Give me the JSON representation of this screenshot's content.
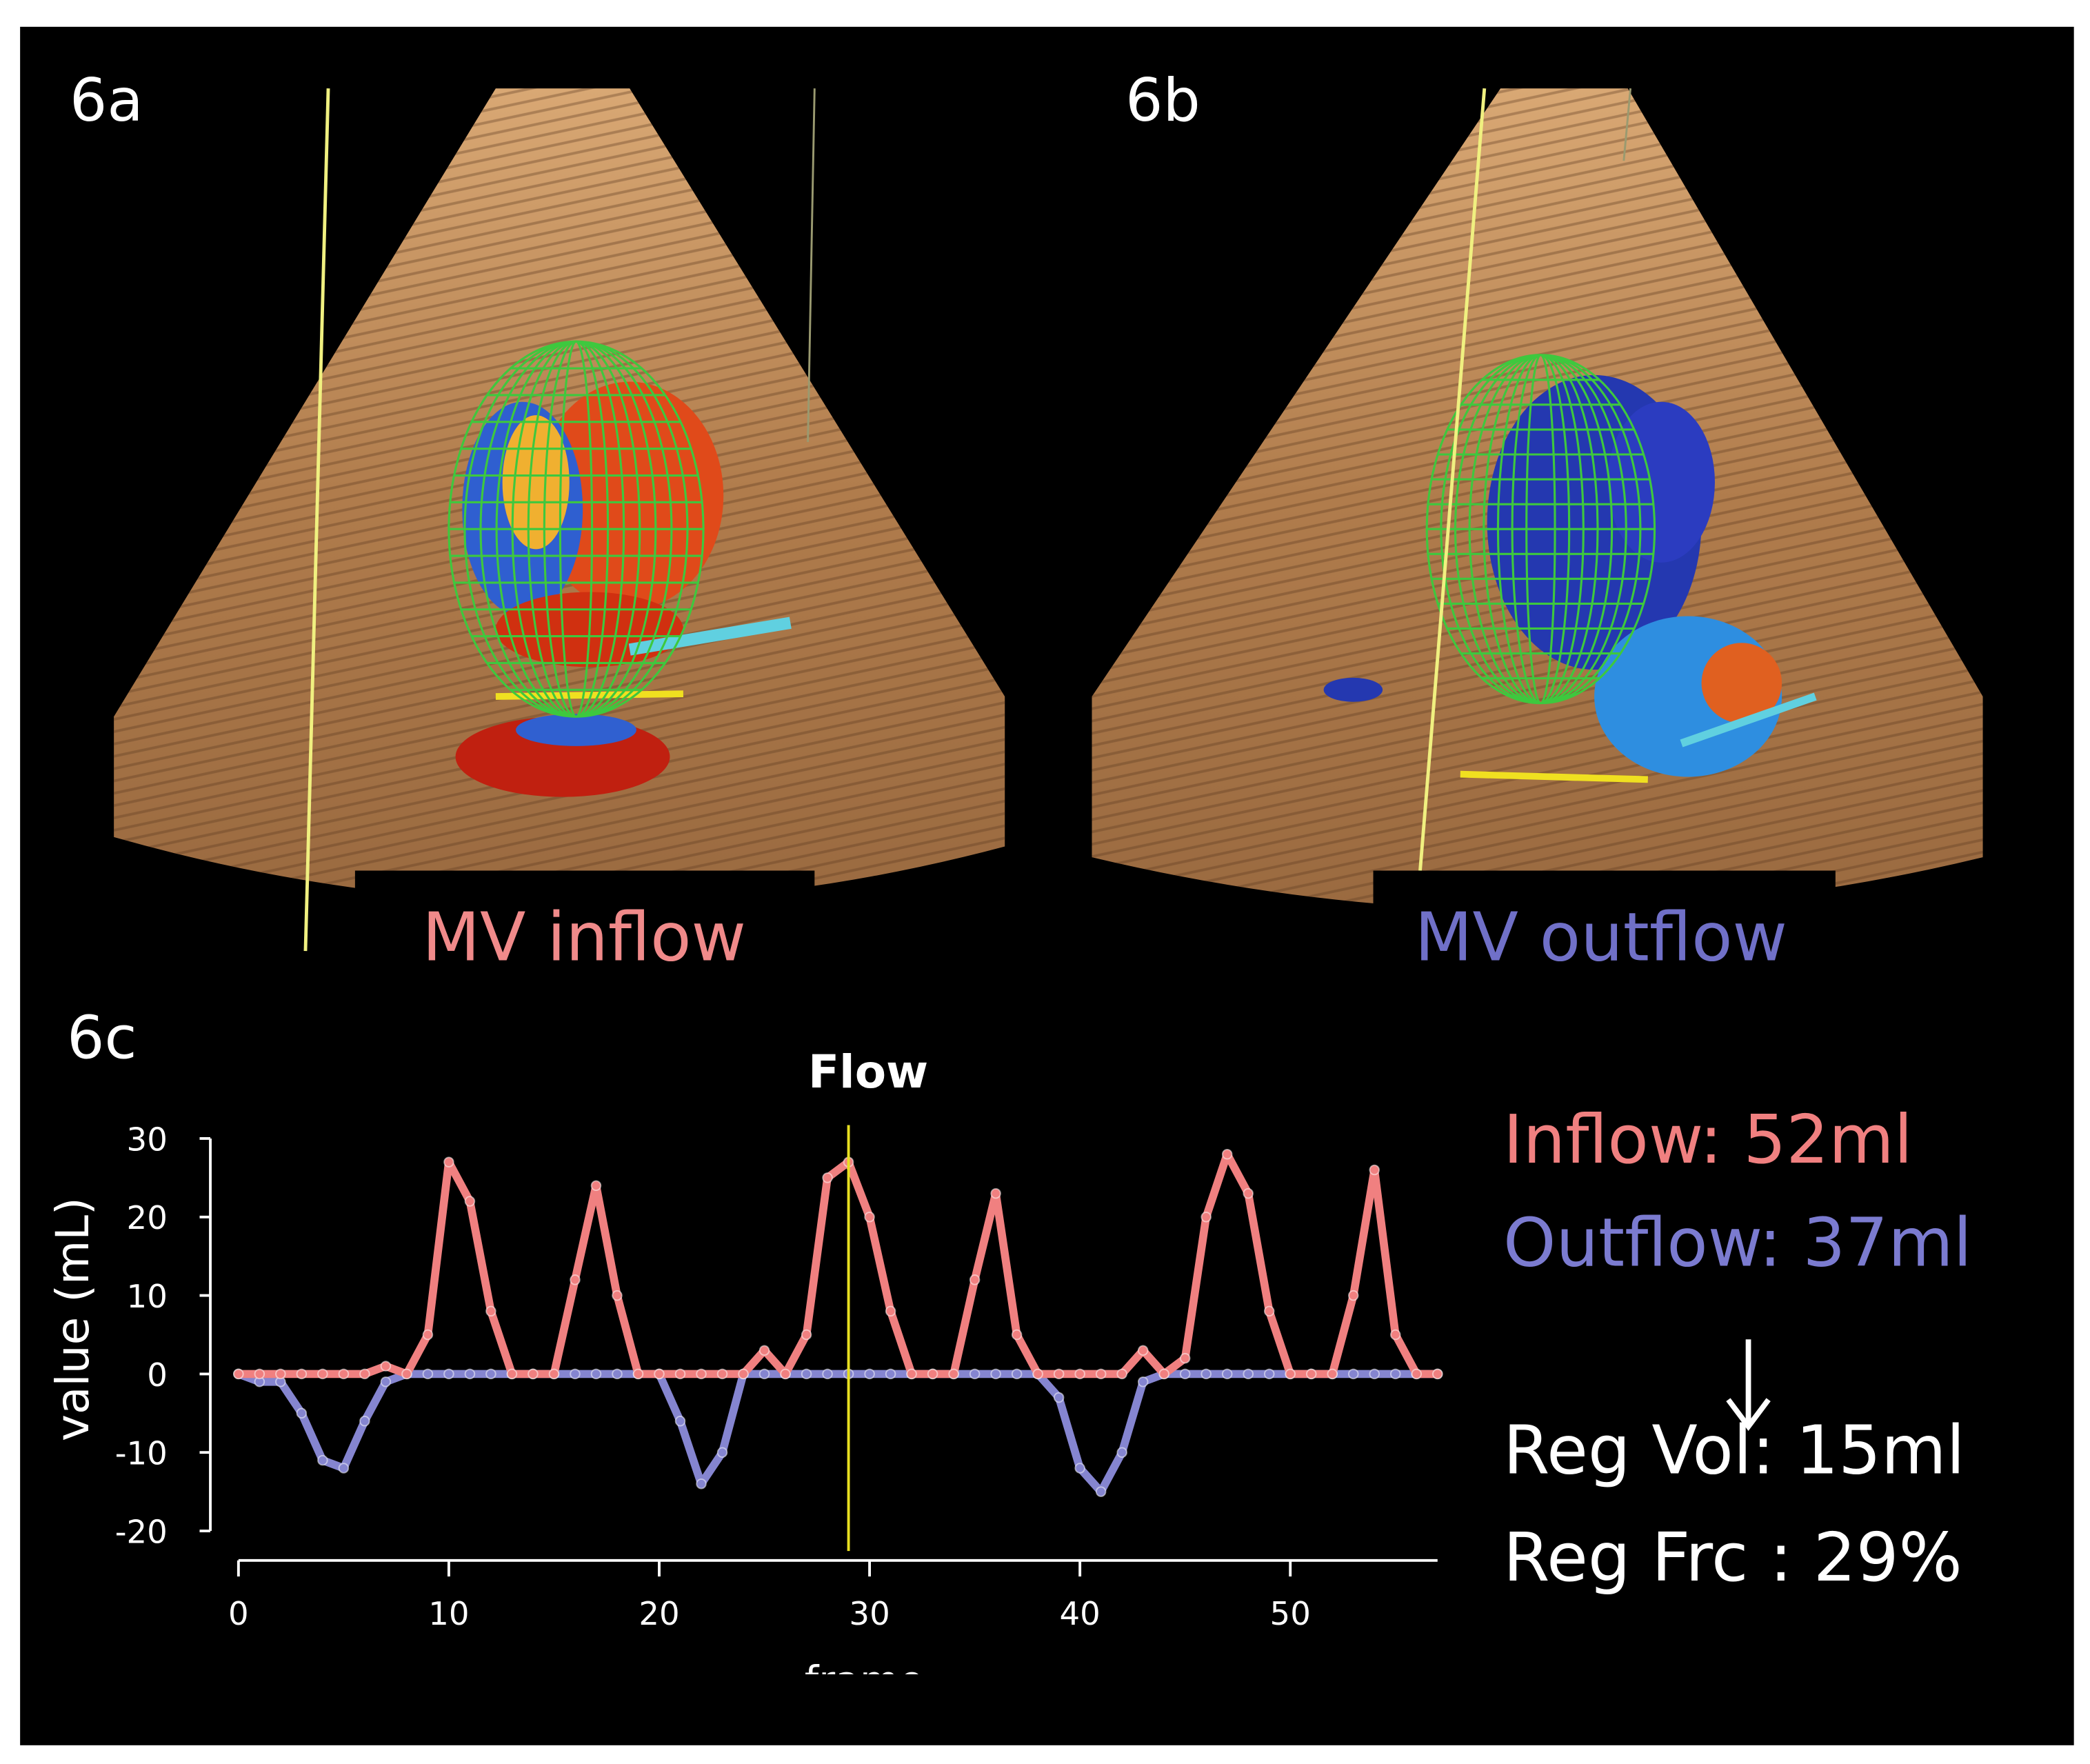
{
  "panels": [
    {
      "label": "6a",
      "caption": "MV inflow"
    },
    {
      "label": "6b",
      "caption": "MV outflow"
    },
    {
      "label": "6c"
    }
  ],
  "chart_data": {
    "type": "line",
    "title": "Flow",
    "xlabel": "frame",
    "ylabel": "value (mL)",
    "x": [
      0,
      1,
      2,
      3,
      4,
      5,
      6,
      7,
      8,
      9,
      10,
      11,
      12,
      13,
      14,
      15,
      16,
      17,
      18,
      19,
      20,
      21,
      22,
      23,
      24,
      25,
      26,
      27,
      28,
      29,
      30,
      31,
      32,
      33,
      34,
      35,
      36,
      37,
      38,
      39,
      40,
      41,
      42,
      43,
      44,
      45,
      46,
      47,
      48,
      49,
      50,
      51,
      52,
      53,
      54,
      55,
      56,
      57
    ],
    "series": [
      {
        "color": "#f08080",
        "values": [
          0,
          0,
          0,
          0,
          0,
          0,
          0,
          1,
          0,
          5,
          27,
          22,
          8,
          0,
          0,
          0,
          12,
          24,
          10,
          0,
          0,
          0,
          0,
          0,
          0,
          3,
          0,
          5,
          25,
          27,
          20,
          8,
          0,
          0,
          0,
          12,
          23,
          5,
          0,
          0,
          0,
          0,
          0,
          3,
          0,
          2,
          20,
          28,
          23,
          8,
          0,
          0,
          0,
          10,
          26,
          5,
          0,
          0
        ]
      },
      {
        "color": "#8585d0",
        "values": [
          0,
          -1,
          -1,
          -5,
          -11,
          -12,
          -6,
          -1,
          0,
          0,
          0,
          0,
          0,
          0,
          0,
          0,
          0,
          0,
          0,
          0,
          0,
          -6,
          -14,
          -10,
          0,
          0,
          0,
          0,
          0,
          0,
          0,
          0,
          0,
          0,
          0,
          0,
          0,
          0,
          0,
          -3,
          -12,
          -15,
          -10,
          -1,
          0,
          0,
          0,
          0,
          0,
          0,
          0,
          0,
          0,
          0,
          0,
          0,
          0,
          0
        ]
      }
    ],
    "cursor_x": 29,
    "xlim": [
      0,
      57
    ],
    "ylim": [
      -20,
      30
    ],
    "xticks": [
      0,
      10,
      20,
      30,
      40,
      50
    ],
    "yticks": [
      -20,
      -10,
      0,
      10,
      20,
      30
    ],
    "annotations": [
      {
        "text": "Inflow: 52ml",
        "color": "#f08080"
      },
      {
        "text": "Outflow: 37ml",
        "color": "#7b7bd0"
      },
      {
        "text": "Reg Vol: 15ml",
        "color": "#ffffff"
      },
      {
        "text": "Reg Frc : 29%",
        "color": "#ffffff"
      }
    ]
  }
}
